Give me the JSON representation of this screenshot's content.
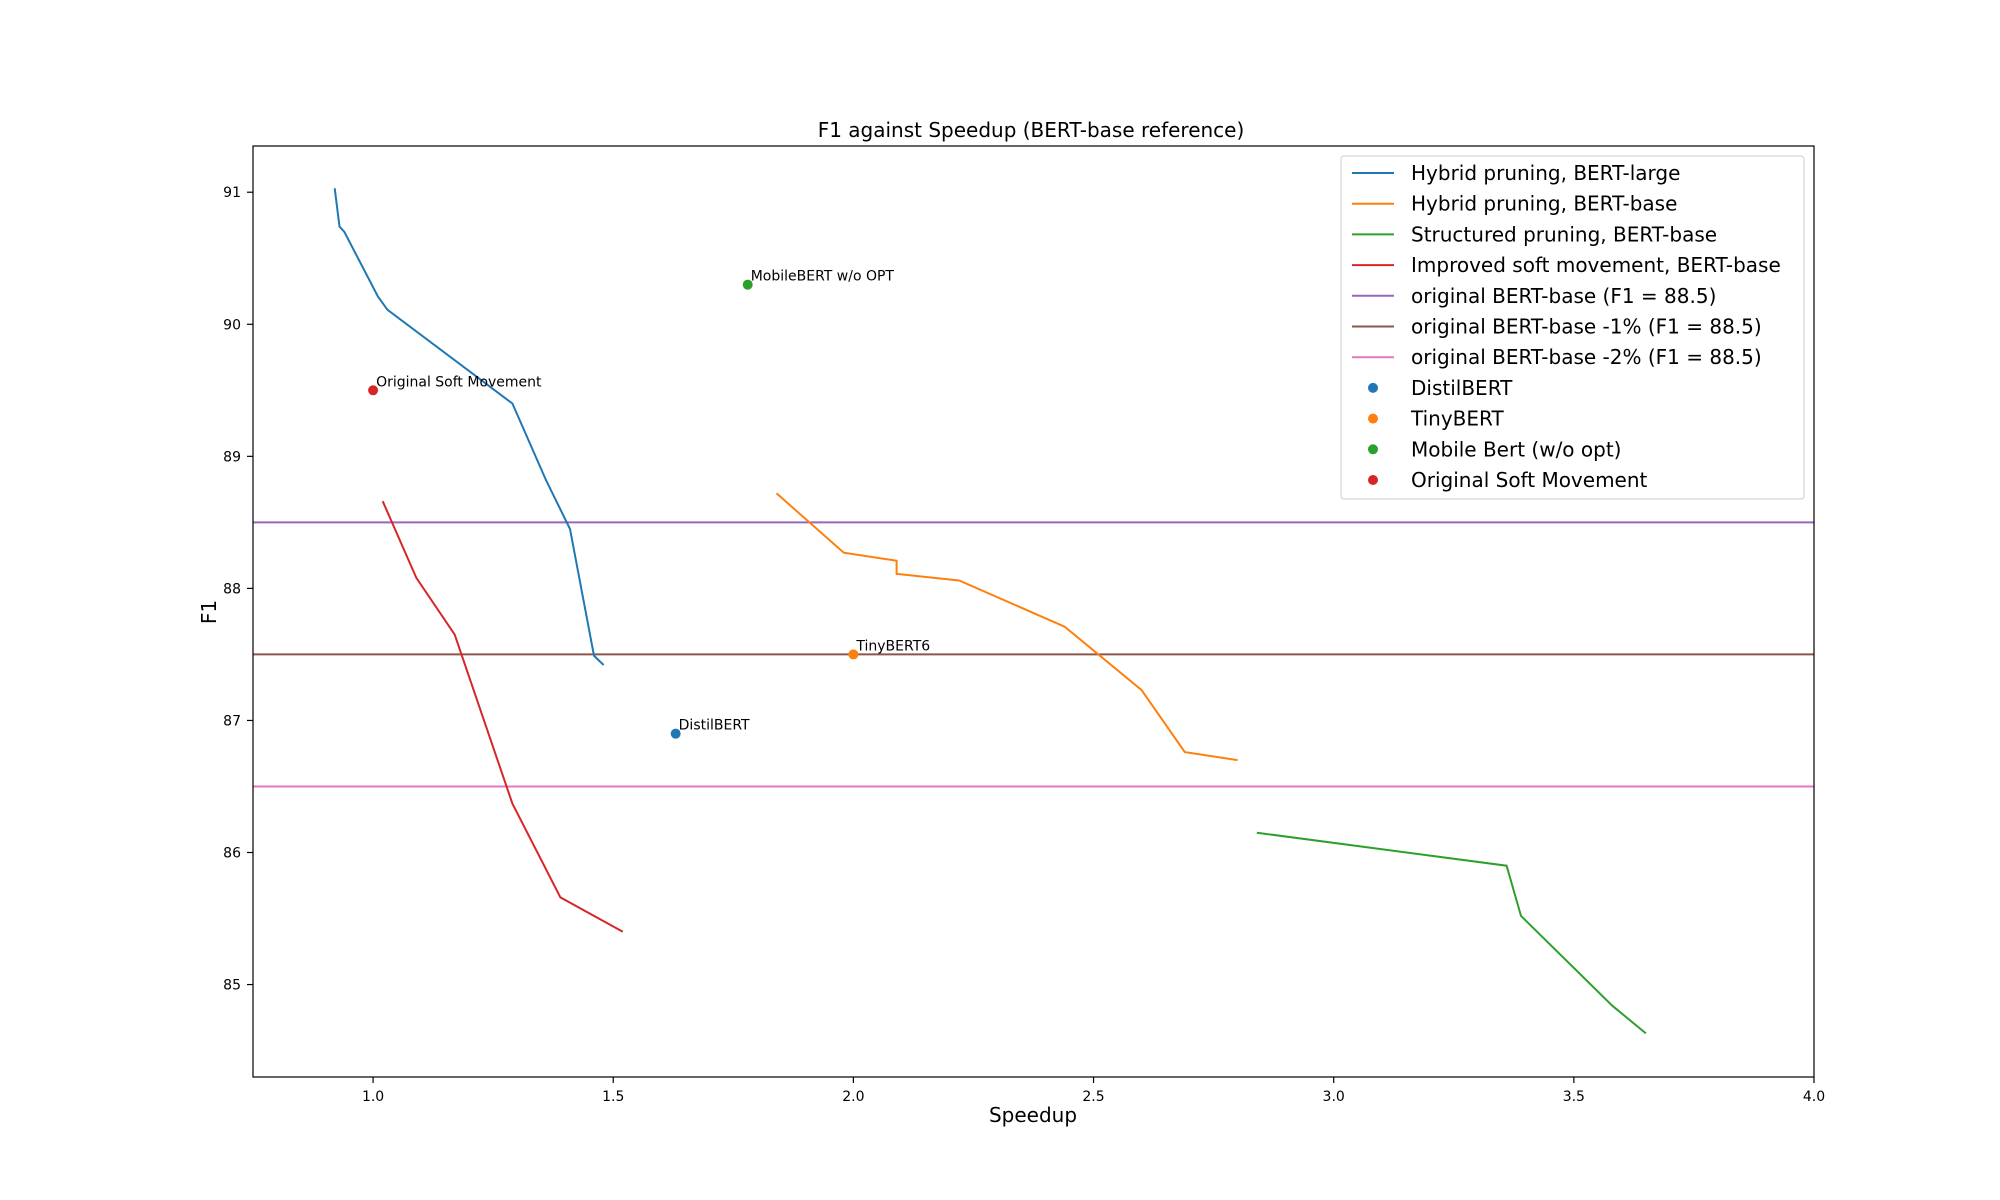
{
  "chart_data": {
    "type": "line",
    "title": "F1 against Speedup (BERT-base reference)",
    "xlabel": "Speedup",
    "ylabel": "F1",
    "xlim": [
      0.75,
      4.0
    ],
    "ylim": [
      84.3,
      91.35
    ],
    "xticks": [
      1.0,
      1.5,
      2.0,
      2.5,
      3.0,
      3.5,
      4.0
    ],
    "xtick_labels": [
      "1.0",
      "1.5",
      "2.0",
      "2.5",
      "3.0",
      "3.5",
      "4.0"
    ],
    "yticks": [
      85,
      86,
      87,
      88,
      89,
      90,
      91
    ],
    "ytick_labels": [
      "85",
      "86",
      "87",
      "88",
      "89",
      "90",
      "91"
    ],
    "grid": false,
    "legend_position": "top-right",
    "series": [
      {
        "name": "Hybrid pruning, BERT-large",
        "color": "#1f77b4",
        "x": [
          0.92,
          0.93,
          0.94,
          1.01,
          1.03,
          1.29,
          1.36,
          1.41,
          1.46,
          1.48
        ],
        "y": [
          91.03,
          90.74,
          90.7,
          90.21,
          90.11,
          89.4,
          88.82,
          88.45,
          87.49,
          87.42
        ]
      },
      {
        "name": "Hybrid pruning, BERT-base",
        "color": "#ff7f0e",
        "x": [
          1.84,
          1.98,
          2.09,
          2.09,
          2.22,
          2.44,
          2.6,
          2.69,
          2.8
        ],
        "y": [
          88.72,
          88.27,
          88.21,
          88.11,
          88.06,
          87.71,
          87.23,
          86.76,
          86.7
        ]
      },
      {
        "name": "Structured pruning, BERT-base",
        "color": "#2ca02c",
        "x": [
          2.84,
          3.36,
          3.39,
          3.58,
          3.65
        ],
        "y": [
          86.15,
          85.9,
          85.52,
          84.84,
          84.63
        ]
      },
      {
        "name": "Improved soft movement, BERT-base",
        "color": "#d62728",
        "x": [
          1.02,
          1.09,
          1.17,
          1.29,
          1.39,
          1.52
        ],
        "y": [
          88.66,
          88.08,
          87.65,
          86.37,
          85.66,
          85.4
        ]
      }
    ],
    "reference_lines": [
      {
        "name": "original BERT-base (F1 = 88.5)",
        "color": "#9467bd",
        "y": 88.5
      },
      {
        "name": "original BERT-base -1% (F1 = 88.5)",
        "color": "#8c564b",
        "y": 87.5
      },
      {
        "name": "original BERT-base -2% (F1 = 88.5)",
        "color": "#e377c2",
        "y": 86.5
      }
    ],
    "points": [
      {
        "name": "DistilBERT",
        "label": "DistilBERT",
        "color": "#1f77b4",
        "x": 1.63,
        "y": 86.9
      },
      {
        "name": "TinyBERT",
        "label": "TinyBERT6",
        "color": "#ff7f0e",
        "x": 2.0,
        "y": 87.5
      },
      {
        "name": "Mobile Bert (w/o opt)",
        "label": "MobileBERT w/o OPT",
        "color": "#2ca02c",
        "x": 1.78,
        "y": 90.3
      },
      {
        "name": "Original Soft Movement",
        "label": "Original Soft Movement",
        "color": "#d62728",
        "x": 1.0,
        "y": 89.5
      }
    ]
  }
}
